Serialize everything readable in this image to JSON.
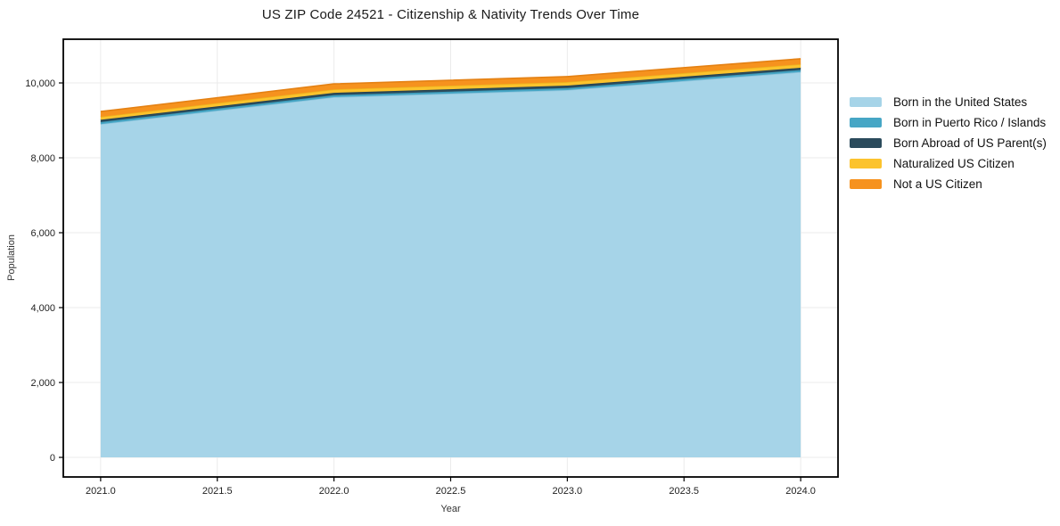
{
  "chart_data": {
    "type": "area",
    "stacked": true,
    "title": "US ZIP Code 24521 - Citizenship & Nativity Trends Over Time",
    "xlabel": "Year",
    "ylabel": "Population",
    "x": [
      2021,
      2022,
      2023,
      2024
    ],
    "series": [
      {
        "name": "Born in the United States",
        "values": [
          8900,
          9620,
          9810,
          10290
        ],
        "color": "#a6d4e8",
        "edge_color": "#8fc5dd"
      },
      {
        "name": "Born in Puerto Rico / Islands",
        "values": [
          55,
          55,
          55,
          55
        ],
        "color": "#46a6c5",
        "edge_color": "#3b98b6"
      },
      {
        "name": "Born Abroad of US Parent(s)",
        "values": [
          60,
          60,
          65,
          60
        ],
        "color": "#2b4b5c",
        "edge_color": "#24404f"
      },
      {
        "name": "Naturalized US Citizen",
        "values": [
          80,
          95,
          95,
          95
        ],
        "color": "#fcc32d",
        "edge_color": "#edb31d"
      },
      {
        "name": "Not a US Citizen",
        "values": [
          140,
          145,
          145,
          145
        ],
        "color": "#f6921e",
        "edge_color": "#e48114"
      }
    ],
    "totals": [
      9235,
      9975,
      10170,
      10645
    ],
    "xlim": [
      2020.84,
      2024.16
    ],
    "ylim": [
      -523,
      11167
    ],
    "x_ticks": {
      "values": [
        2021.0,
        2021.5,
        2022.0,
        2022.5,
        2023.0,
        2023.5,
        2024.0
      ],
      "labels": [
        "2021.0",
        "2021.5",
        "2022.0",
        "2022.5",
        "2023.0",
        "2023.5",
        "2024.0"
      ]
    },
    "y_ticks": {
      "values": [
        0,
        2000,
        4000,
        6000,
        8000,
        10000
      ],
      "labels": [
        "0",
        "2,000",
        "4,000",
        "6,000",
        "8,000",
        "10,000"
      ]
    },
    "grid": true,
    "grid_color": "#ebebeb",
    "spine_color": "#000000",
    "tick_label_color": "#222222",
    "legend_position": "outside-right-top"
  }
}
